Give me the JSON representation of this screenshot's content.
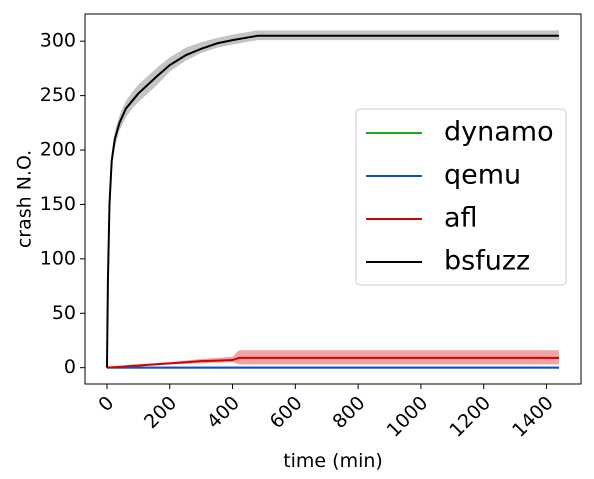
{
  "chart_data": {
    "type": "line",
    "xlabel": "time (min)",
    "ylabel": "crash N.O.",
    "xlim": [
      -70,
      1510
    ],
    "ylim": [
      -15,
      325
    ],
    "xticks": [
      0,
      200,
      400,
      600,
      800,
      1000,
      1200,
      1400
    ],
    "yticks": [
      0,
      50,
      100,
      150,
      200,
      250,
      300
    ],
    "grid": false,
    "legend_position": "center-right",
    "series": [
      {
        "name": "dynamo",
        "color": "#1fa81f",
        "x": [
          0,
          1440
        ],
        "y": [
          0,
          0
        ],
        "lower": [
          0,
          0
        ],
        "upper": [
          0,
          0
        ]
      },
      {
        "name": "qemu",
        "color": "#0b4fd1",
        "x": [
          0,
          1440
        ],
        "y": [
          0,
          0
        ],
        "lower": [
          0,
          0
        ],
        "upper": [
          0,
          0
        ]
      },
      {
        "name": "afl",
        "color": "#d60000",
        "band_color": "#f2a3a3",
        "x": [
          0,
          50,
          100,
          150,
          200,
          250,
          300,
          350,
          400,
          420,
          500,
          700,
          1000,
          1440
        ],
        "y": [
          0,
          1,
          2,
          3,
          4,
          5,
          6,
          6.5,
          7,
          9,
          9,
          9,
          9,
          9
        ],
        "lower": [
          0,
          0,
          1,
          2,
          3,
          3.5,
          4,
          4.5,
          5,
          3,
          3,
          3,
          3,
          3
        ],
        "upper": [
          0,
          2,
          3,
          4,
          5,
          6.5,
          8,
          9,
          10,
          16,
          16,
          16,
          16,
          16
        ]
      },
      {
        "name": "bsfuzz",
        "color": "#000000",
        "band_color": "#c4c4c4",
        "x": [
          0,
          3,
          8,
          15,
          25,
          40,
          60,
          80,
          100,
          130,
          160,
          200,
          250,
          300,
          350,
          400,
          440,
          480,
          600,
          800,
          1000,
          1200,
          1440
        ],
        "y": [
          0,
          80,
          150,
          190,
          210,
          225,
          238,
          245,
          252,
          260,
          268,
          278,
          287,
          293,
          298,
          301,
          303,
          305,
          305,
          305,
          305,
          305,
          305
        ],
        "lower": [
          0,
          70,
          140,
          182,
          202,
          218,
          230,
          238,
          244,
          252,
          260,
          272,
          282,
          289,
          294,
          297,
          299,
          301,
          301,
          301,
          301,
          301,
          301
        ],
        "upper": [
          0,
          90,
          160,
          198,
          218,
          232,
          245,
          253,
          260,
          268,
          276,
          285,
          294,
          299,
          303,
          306,
          308,
          310,
          310,
          310,
          310,
          310,
          310
        ]
      }
    ]
  }
}
